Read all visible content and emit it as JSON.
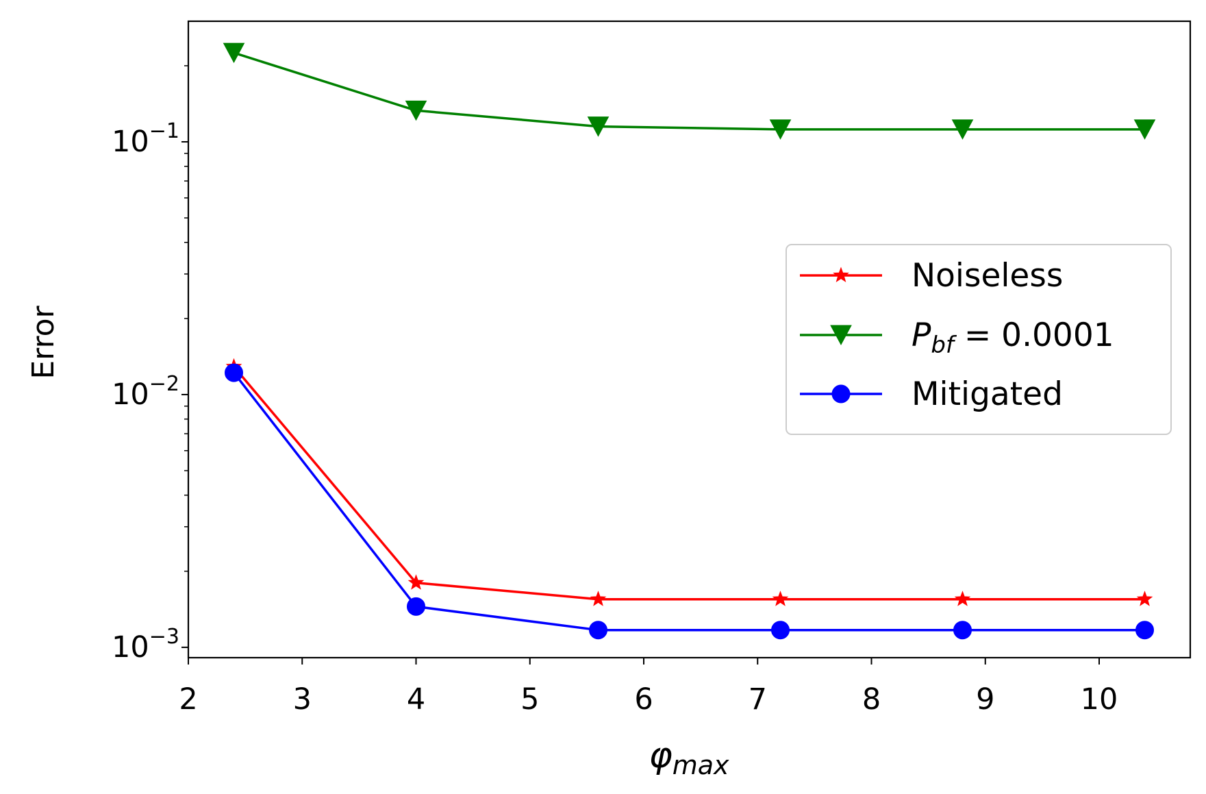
{
  "chart_data": {
    "type": "line",
    "title": "",
    "xlabel": "φ",
    "xlabel_sub": "max",
    "ylabel": "Error",
    "xscale": "linear",
    "yscale": "log",
    "xlim": [
      2.0,
      10.8
    ],
    "ylim": [
      0.00091,
      0.3
    ],
    "xticks": [
      2,
      3,
      4,
      5,
      6,
      7,
      8,
      9,
      10
    ],
    "xtick_labels": [
      "2",
      "3",
      "4",
      "5",
      "6",
      "7",
      "8",
      "9",
      "10"
    ],
    "yticks": [
      0.001,
      0.01,
      0.1
    ],
    "ytick_labels": [
      {
        "base": "10",
        "exp": "−3"
      },
      {
        "base": "10",
        "exp": "−2"
      },
      {
        "base": "10",
        "exp": "−1"
      }
    ],
    "grid": false,
    "legend_position": "center-right",
    "x": [
      2.4,
      4.0,
      5.6,
      7.2,
      8.8,
      10.4
    ],
    "series": [
      {
        "name": "Noiseless",
        "color": "#ff0000",
        "marker": "star",
        "values": [
          0.0129,
          0.0018,
          0.00155,
          0.00155,
          0.00155,
          0.00155
        ]
      },
      {
        "name": "P",
        "name_sub": "bf",
        "name_suffix": "= 0.0001",
        "color": "#008000",
        "marker": "triangle-down",
        "values": [
          0.225,
          0.133,
          0.115,
          0.112,
          0.112,
          0.112
        ]
      },
      {
        "name": "Mitigated",
        "color": "#0000ff",
        "marker": "circle",
        "values": [
          0.0122,
          0.00145,
          0.00117,
          0.00117,
          0.00117,
          0.00117
        ]
      }
    ]
  }
}
